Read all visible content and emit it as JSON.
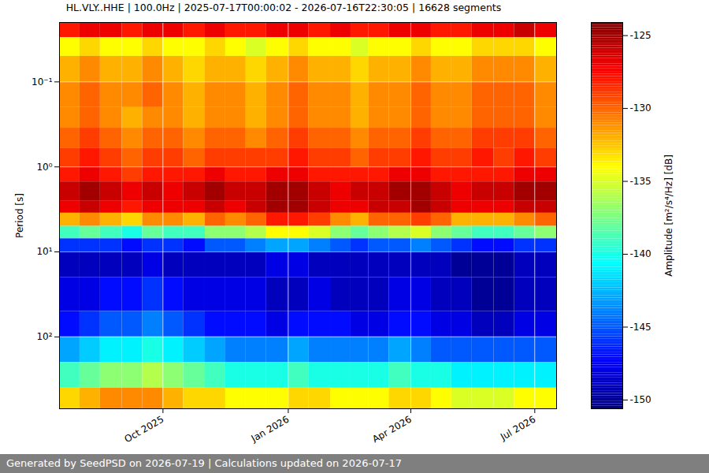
{
  "chart_data": {
    "type": "heatmap",
    "title": "HL.VLY..HHE | 100.0Hz | 2025-07-17T00:00:02 - 2026-07-16T22:30:05 | 16628 segments",
    "ylabel": "Period [s]",
    "caption": "Generated by SeedPSD on 2026-07-19 | Calculations updated on 2026-07-17",
    "log": "y",
    "grid": true,
    "xlim": [
      "2025-07-17",
      "2026-07-17"
    ],
    "ylim": [
      0.02,
      700
    ],
    "xticks": [
      {
        "value": "2025-10-01",
        "label": "Oct 2025"
      },
      {
        "value": "2026-01-01",
        "label": "Jan 2026"
      },
      {
        "value": "2026-04-01",
        "label": "Apr 2026"
      },
      {
        "value": "2026-07-01",
        "label": "Jul 2026"
      }
    ],
    "yticks": [
      {
        "value": 0.1,
        "label": "10⁻¹"
      },
      {
        "value": 1,
        "label": "10⁰"
      },
      {
        "value": 10,
        "label": "10¹"
      },
      {
        "value": 100,
        "label": "10²"
      }
    ],
    "x_edges": [
      "2025-07-17",
      "2025-08-01",
      "2025-08-16",
      "2025-09-01",
      "2025-09-16",
      "2025-10-01",
      "2025-10-16",
      "2025-11-01",
      "2025-11-16",
      "2025-12-01",
      "2025-12-16",
      "2026-01-01",
      "2026-01-16",
      "2026-02-01",
      "2026-02-16",
      "2026-03-01",
      "2026-03-16",
      "2026-04-01",
      "2026-04-16",
      "2026-05-01",
      "2026-05-16",
      "2026-06-01",
      "2026-06-16",
      "2026-07-01",
      "2026-07-17"
    ],
    "y_edges": [
      0.02,
      0.03,
      0.05,
      0.1,
      0.2,
      0.35,
      0.6,
      1,
      1.5,
      2.5,
      3.5,
      5,
      7,
      10,
      20,
      50,
      100,
      200,
      400,
      700
    ],
    "values": [
      [
        -128,
        -127,
        -127,
        -128,
        -127,
        -127,
        -128,
        -127,
        -128,
        -128,
        -127,
        -127,
        -128,
        -127,
        -128,
        -128,
        -127,
        -127,
        -128,
        -128,
        -127,
        -127,
        -126,
        -127
      ],
      [
        -134,
        -133,
        -134,
        -134,
        -133,
        -134,
        -134,
        -133,
        -134,
        -135,
        -134,
        -133,
        -134,
        -134,
        -135,
        -134,
        -134,
        -133,
        -134,
        -134,
        -133,
        -133,
        -133,
        -134
      ],
      [
        -132,
        -131,
        -132,
        -132,
        -131,
        -132,
        -133,
        -132,
        -132,
        -133,
        -132,
        -131,
        -132,
        -132,
        -133,
        -132,
        -132,
        -131,
        -132,
        -132,
        -131,
        -131,
        -131,
        -132
      ],
      [
        -131,
        -130,
        -131,
        -131,
        -130,
        -131,
        -132,
        -131,
        -131,
        -132,
        -131,
        -130,
        -131,
        -131,
        -132,
        -131,
        -131,
        -130,
        -131,
        -131,
        -130,
        -130,
        -130,
        -131
      ],
      [
        -131,
        -130,
        -131,
        -132,
        -131,
        -131,
        -132,
        -131,
        -131,
        -132,
        -131,
        -130,
        -131,
        -131,
        -132,
        -131,
        -131,
        -130,
        -131,
        -131,
        -130,
        -130,
        -130,
        -131
      ],
      [
        -130,
        -129,
        -130,
        -131,
        -130,
        -130,
        -131,
        -130,
        -130,
        -131,
        -130,
        -129,
        -130,
        -130,
        -131,
        -130,
        -130,
        -129,
        -130,
        -130,
        -129,
        -129,
        -129,
        -130
      ],
      [
        -129,
        -128,
        -129,
        -130,
        -129,
        -129,
        -130,
        -129,
        -129,
        -129,
        -129,
        -128,
        -129,
        -129,
        -130,
        -129,
        -129,
        -128,
        -129,
        -129,
        -128,
        -129,
        -128,
        -129
      ],
      [
        -128,
        -127,
        -128,
        -129,
        -128,
        -128,
        -128,
        -127,
        -128,
        -128,
        -127,
        -127,
        -128,
        -128,
        -128,
        -128,
        -127,
        -127,
        -128,
        -128,
        -128,
        -128,
        -127,
        -127
      ],
      [
        -126,
        -125,
        -126,
        -127,
        -126,
        -127,
        -126,
        -125,
        -126,
        -126,
        -125,
        -125,
        -126,
        -127,
        -126,
        -126,
        -125,
        -125,
        -126,
        -127,
        -126,
        -126,
        -125,
        -125
      ],
      [
        -127,
        -126,
        -127,
        -128,
        -127,
        -127,
        -127,
        -126,
        -127,
        -126,
        -125,
        -125,
        -126,
        -127,
        -127,
        -126,
        -126,
        -125,
        -126,
        -127,
        -127,
        -127,
        -126,
        -126
      ],
      [
        -132,
        -131,
        -132,
        -133,
        -131,
        -131,
        -132,
        -130,
        -131,
        -130,
        -128,
        -128,
        -129,
        -131,
        -132,
        -130,
        -130,
        -129,
        -130,
        -132,
        -132,
        -132,
        -131,
        -130
      ],
      [
        -139,
        -138,
        -139,
        -140,
        -138,
        -139,
        -139,
        -137,
        -137,
        -136,
        -134,
        -134,
        -135,
        -137,
        -138,
        -137,
        -136,
        -135,
        -137,
        -138,
        -139,
        -139,
        -138,
        -137
      ],
      [
        -146,
        -146,
        -146,
        -147,
        -146,
        -146,
        -147,
        -145,
        -145,
        -144,
        -143,
        -143,
        -144,
        -145,
        -146,
        -145,
        -145,
        -144,
        -145,
        -146,
        -147,
        -147,
        -146,
        -146
      ],
      [
        -149,
        -149,
        -149,
        -149,
        -148,
        -149,
        -149,
        -149,
        -149,
        -149,
        -148,
        -148,
        -149,
        -149,
        -149,
        -149,
        -149,
        -149,
        -149,
        -150,
        -150,
        -150,
        -149,
        -149
      ],
      [
        -148,
        -148,
        -147,
        -147,
        -146,
        -147,
        -148,
        -148,
        -148,
        -148,
        -149,
        -149,
        -148,
        -149,
        -149,
        -149,
        -148,
        -148,
        -149,
        -149,
        -150,
        -150,
        -149,
        -149
      ],
      [
        -147,
        -146,
        -145,
        -145,
        -144,
        -145,
        -146,
        -147,
        -147,
        -147,
        -148,
        -147,
        -147,
        -147,
        -148,
        -148,
        -147,
        -147,
        -148,
        -148,
        -149,
        -149,
        -148,
        -148
      ],
      [
        -143,
        -142,
        -141,
        -141,
        -140,
        -141,
        -142,
        -143,
        -144,
        -144,
        -144,
        -143,
        -144,
        -144,
        -144,
        -144,
        -143,
        -144,
        -145,
        -145,
        -145,
        -145,
        -145,
        -145
      ],
      [
        -139,
        -138,
        -137,
        -137,
        -136,
        -137,
        -138,
        -139,
        -140,
        -140,
        -140,
        -139,
        -140,
        -140,
        -140,
        -140,
        -139,
        -140,
        -140,
        -141,
        -141,
        -141,
        -141,
        -141
      ],
      [
        -133,
        -132,
        -131,
        -131,
        -131,
        -132,
        -133,
        -133,
        -134,
        -134,
        -134,
        -133,
        -133,
        -134,
        -134,
        -134,
        -133,
        -133,
        -134,
        -135,
        -135,
        -135,
        -134,
        -134
      ]
    ],
    "colorbar": {
      "label": "Amplitude [m²/s⁴/Hz] [dB]",
      "range": [
        -150.6,
        -124.1
      ],
      "ticks": [
        -125,
        -130,
        -135,
        -140,
        -145,
        -150
      ]
    }
  }
}
